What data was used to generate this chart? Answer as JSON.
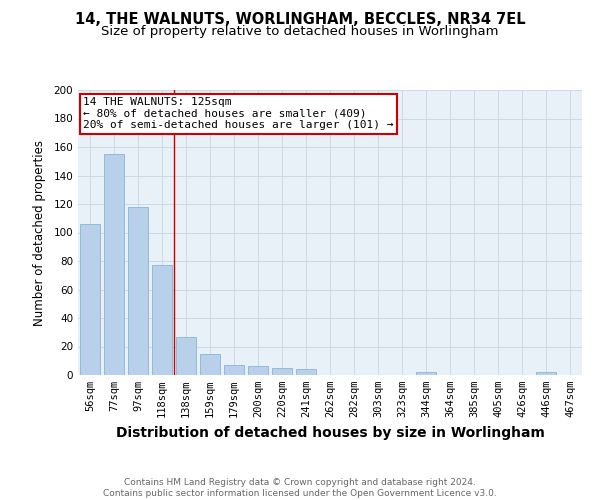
{
  "title_line1": "14, THE WALNUTS, WORLINGHAM, BECCLES, NR34 7EL",
  "title_line2": "Size of property relative to detached houses in Worlingham",
  "xlabel": "Distribution of detached houses by size in Worlingham",
  "ylabel": "Number of detached properties",
  "categories": [
    "56sqm",
    "77sqm",
    "97sqm",
    "118sqm",
    "138sqm",
    "159sqm",
    "179sqm",
    "200sqm",
    "220sqm",
    "241sqm",
    "262sqm",
    "282sqm",
    "303sqm",
    "323sqm",
    "344sqm",
    "364sqm",
    "385sqm",
    "405sqm",
    "426sqm",
    "446sqm",
    "467sqm"
  ],
  "values": [
    106,
    155,
    118,
    77,
    27,
    15,
    7,
    6,
    5,
    4,
    0,
    0,
    0,
    0,
    2,
    0,
    0,
    0,
    0,
    2,
    0
  ],
  "bar_color": "#b8d0ea",
  "bar_edge_color": "#7aadd4",
  "vline_x_index": 3.5,
  "vline_color": "#cc0000",
  "annotation_box_color": "#cc0000",
  "annotation_line1": "14 THE WALNUTS: 125sqm",
  "annotation_line2": "← 80% of detached houses are smaller (409)",
  "annotation_line3": "20% of semi-detached houses are larger (101) →",
  "bg_color": "#e8f0f8",
  "grid_color": "#c8d4e4",
  "ylim": [
    0,
    200
  ],
  "yticks": [
    0,
    20,
    40,
    60,
    80,
    100,
    120,
    140,
    160,
    180,
    200
  ],
  "footnote": "Contains HM Land Registry data © Crown copyright and database right 2024.\nContains public sector information licensed under the Open Government Licence v3.0.",
  "title_fontsize": 10.5,
  "subtitle_fontsize": 9.5,
  "xlabel_fontsize": 10,
  "ylabel_fontsize": 8.5,
  "tick_fontsize": 7.5,
  "annot_fontsize": 8,
  "footnote_fontsize": 6.5
}
